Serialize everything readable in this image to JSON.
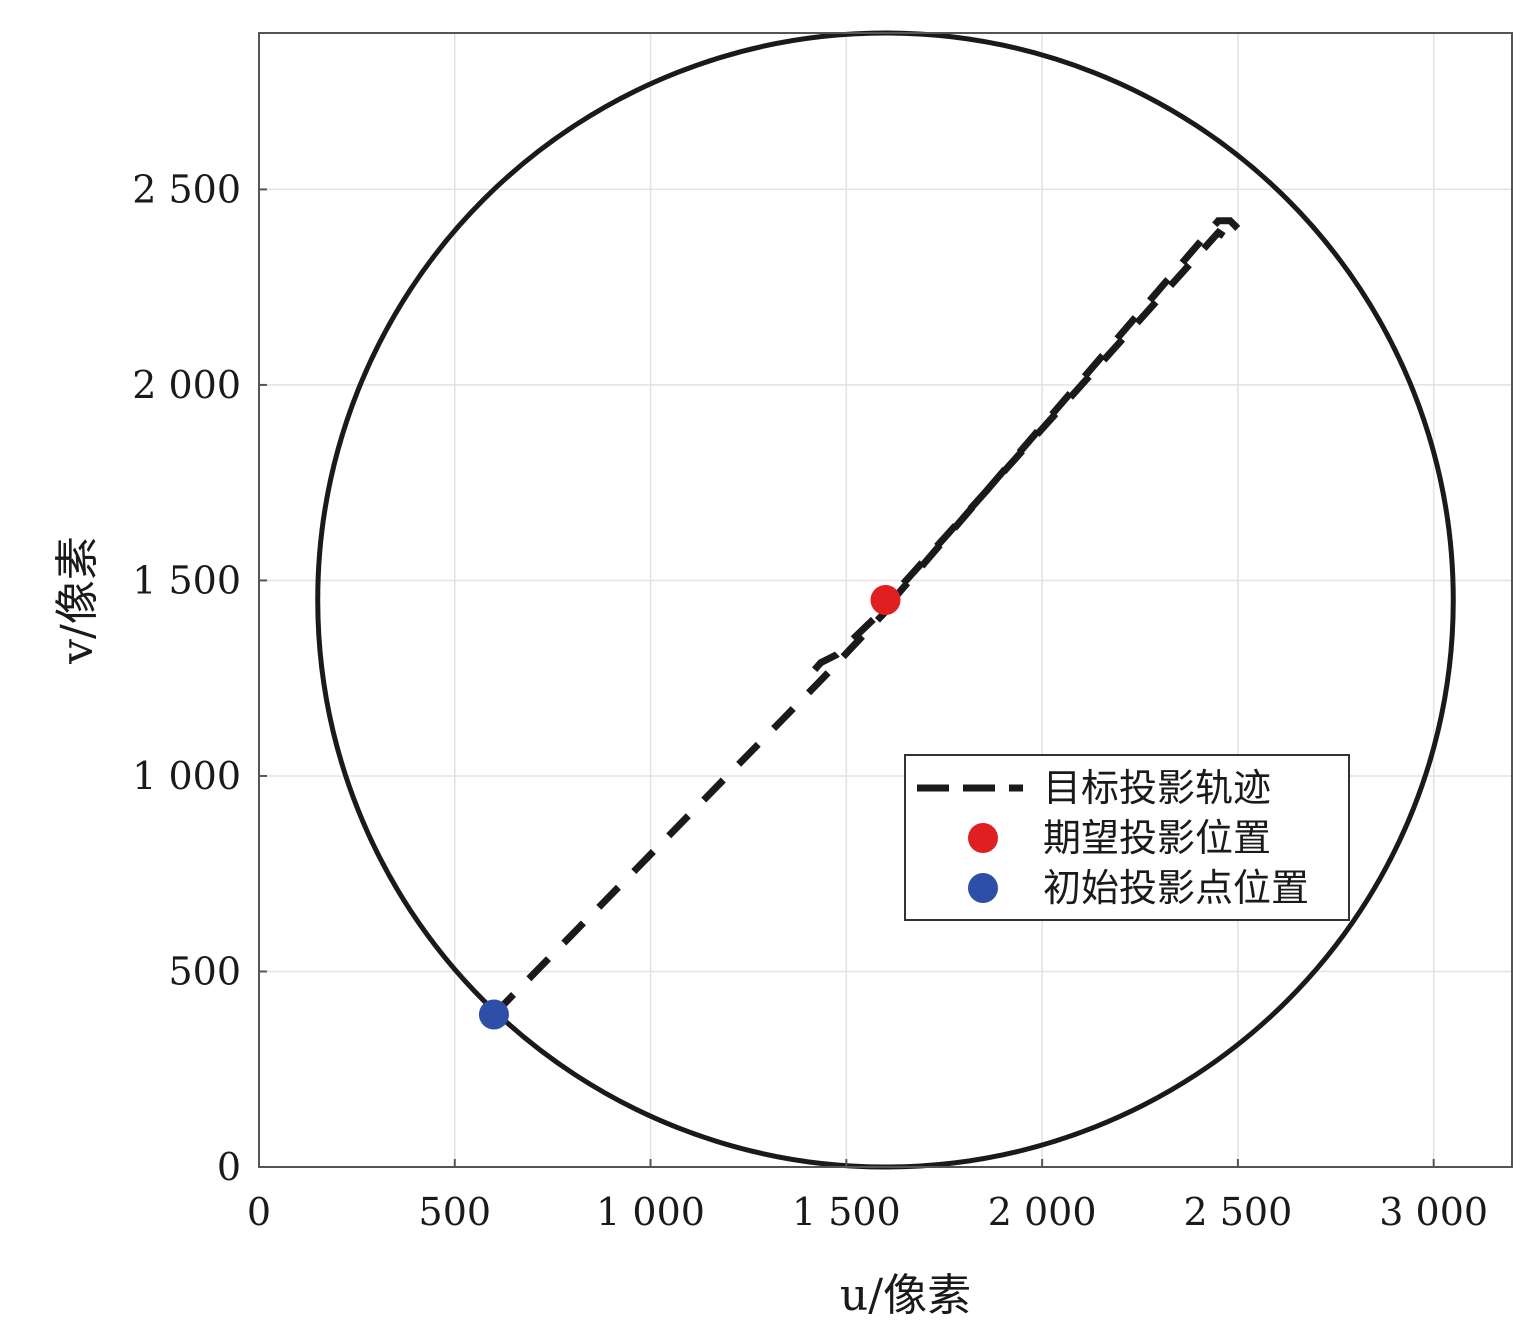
{
  "chart_data": {
    "type": "line",
    "xlabel": "u/像素",
    "ylabel": "v/像素",
    "xlim": [
      0,
      3200
    ],
    "ylim": [
      0,
      2900
    ],
    "xticks": [
      {
        "value": 0,
        "label": "0"
      },
      {
        "value": 500,
        "label": "500"
      },
      {
        "value": 1000,
        "label": "1 000"
      },
      {
        "value": 1500,
        "label": "1 500"
      },
      {
        "value": 2000,
        "label": "2 000"
      },
      {
        "value": 2500,
        "label": "2 500"
      },
      {
        "value": 3000,
        "label": "3 000"
      }
    ],
    "yticks": [
      {
        "value": 0,
        "label": "0"
      },
      {
        "value": 500,
        "label": "500"
      },
      {
        "value": 1000,
        "label": "1 000"
      },
      {
        "value": 1500,
        "label": "1 500"
      },
      {
        "value": 2000,
        "label": "2 000"
      },
      {
        "value": 2500,
        "label": "2 500"
      }
    ],
    "grid": true,
    "legend_position": "right",
    "boundary_circle": {
      "center": [
        1600,
        1450
      ],
      "radius": 1450,
      "color": "#1a1a1a"
    },
    "series": [
      {
        "name": "目标投影轨迹",
        "style": "dashed",
        "color": "#1a1a1a",
        "x": [
          600,
          1440,
          1600,
          1600,
          1590,
          2450,
          2480,
          2500,
          2480,
          2450,
          1610,
          1475,
          1435,
          1400,
          1400
        ],
        "y": [
          390,
          1250,
          1420,
          1420,
          1430,
          2390,
          2370,
          2400,
          2420,
          2420,
          1440,
          1310,
          1290,
          1250,
          1240
        ]
      },
      {
        "name": "期望投影位置",
        "type": "scatter",
        "color": "#e02020",
        "x": [
          1600
        ],
        "y": [
          1450
        ]
      },
      {
        "name": "初始投影点位置",
        "type": "scatter",
        "color": "#2e4fa8",
        "x": [
          600
        ],
        "y": [
          390
        ]
      }
    ]
  }
}
